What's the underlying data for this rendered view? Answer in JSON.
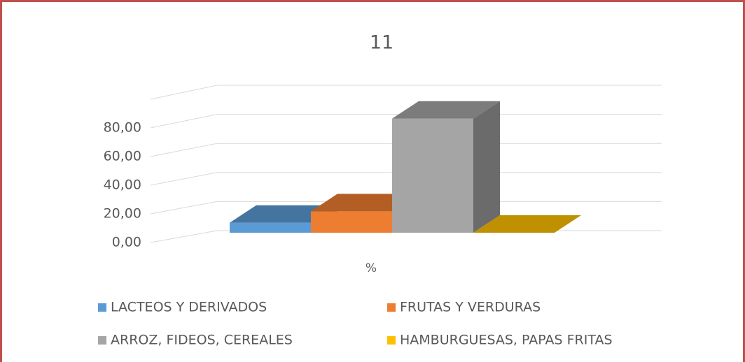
{
  "chart_data": {
    "type": "bar3d",
    "title": "11",
    "categories": [
      "%"
    ],
    "series": [
      {
        "name": "LACTEOS Y DERIVADOS",
        "color": "#5b9bd5",
        "values": [
          7
        ]
      },
      {
        "name": "FRUTAS Y VERDURAS",
        "color": "#ed7d31",
        "values": [
          15
        ]
      },
      {
        "name": "ARROZ, FIDEOS, CEREALES",
        "color": "#a5a5a5",
        "values": [
          80
        ]
      },
      {
        "name": "HAMBURGUESAS, PAPAS FRITAS",
        "color": "#ffc000",
        "values": [
          0
        ]
      }
    ],
    "ylim": [
      0,
      100
    ],
    "yticks": [
      {
        "value": 0,
        "label": "0,00"
      },
      {
        "value": 20,
        "label": "20,00"
      },
      {
        "value": 40,
        "label": "40,00"
      },
      {
        "value": 60,
        "label": "60,00"
      },
      {
        "value": 80,
        "label": "80,00"
      }
    ],
    "grid": true
  }
}
